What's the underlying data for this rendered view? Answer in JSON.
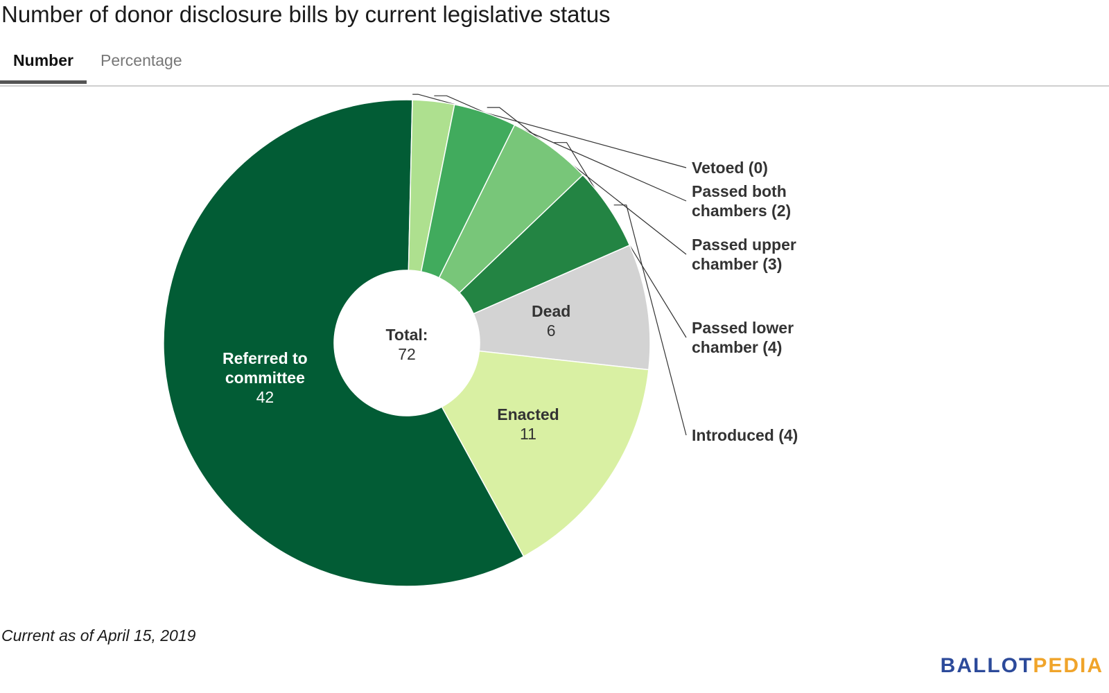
{
  "title": "Number of donor disclosure bills by current legislative status",
  "tabs": [
    {
      "label": "Number",
      "active": true
    },
    {
      "label": "Percentage",
      "active": false
    }
  ],
  "footnote": "Current as of April 15, 2019",
  "logo": {
    "part1": "BALLOT",
    "part2": "PEDIA",
    "color1": "#2c4a9a",
    "color2": "#f0a42a"
  },
  "chart_data": {
    "type": "pie",
    "variant": "donut",
    "center_label": {
      "title": "Total:",
      "value": "72"
    },
    "slices": [
      {
        "name": "Referred to committee",
        "value": 42,
        "color": "#025c35",
        "label_lines": [
          "Referred to",
          "committee"
        ],
        "label_value": "42",
        "label_position": "inside",
        "text_color": "#ffffff"
      },
      {
        "name": "Vetoed",
        "value": 0,
        "color": "#0b6b3a",
        "label_lines": [
          "Vetoed (0)"
        ],
        "label_position": "outside"
      },
      {
        "name": "Passed both chambers",
        "value": 2,
        "color": "#aee08f",
        "label_lines": [
          "Passed both",
          "chambers (2)"
        ],
        "label_position": "outside"
      },
      {
        "name": "Passed upper chamber",
        "value": 3,
        "color": "#41ab5d",
        "label_lines": [
          "Passed upper",
          "chamber (3)"
        ],
        "label_position": "outside"
      },
      {
        "name": "Passed lower chamber",
        "value": 4,
        "color": "#78c679",
        "label_lines": [
          "Passed lower",
          "chamber (4)"
        ],
        "label_position": "outside"
      },
      {
        "name": "Introduced",
        "value": 4,
        "color": "#238443",
        "label_lines": [
          "Introduced (4)"
        ],
        "label_position": "outside"
      },
      {
        "name": "Dead",
        "value": 6,
        "color": "#d3d3d3",
        "label_lines": [
          "Dead"
        ],
        "label_value": "6",
        "label_position": "inside",
        "text_color": "#333333"
      },
      {
        "name": "Enacted",
        "value": 11,
        "color": "#d9f0a3",
        "label_lines": [
          "Enacted"
        ],
        "label_value": "11",
        "label_position": "inside",
        "text_color": "#333333"
      }
    ]
  }
}
